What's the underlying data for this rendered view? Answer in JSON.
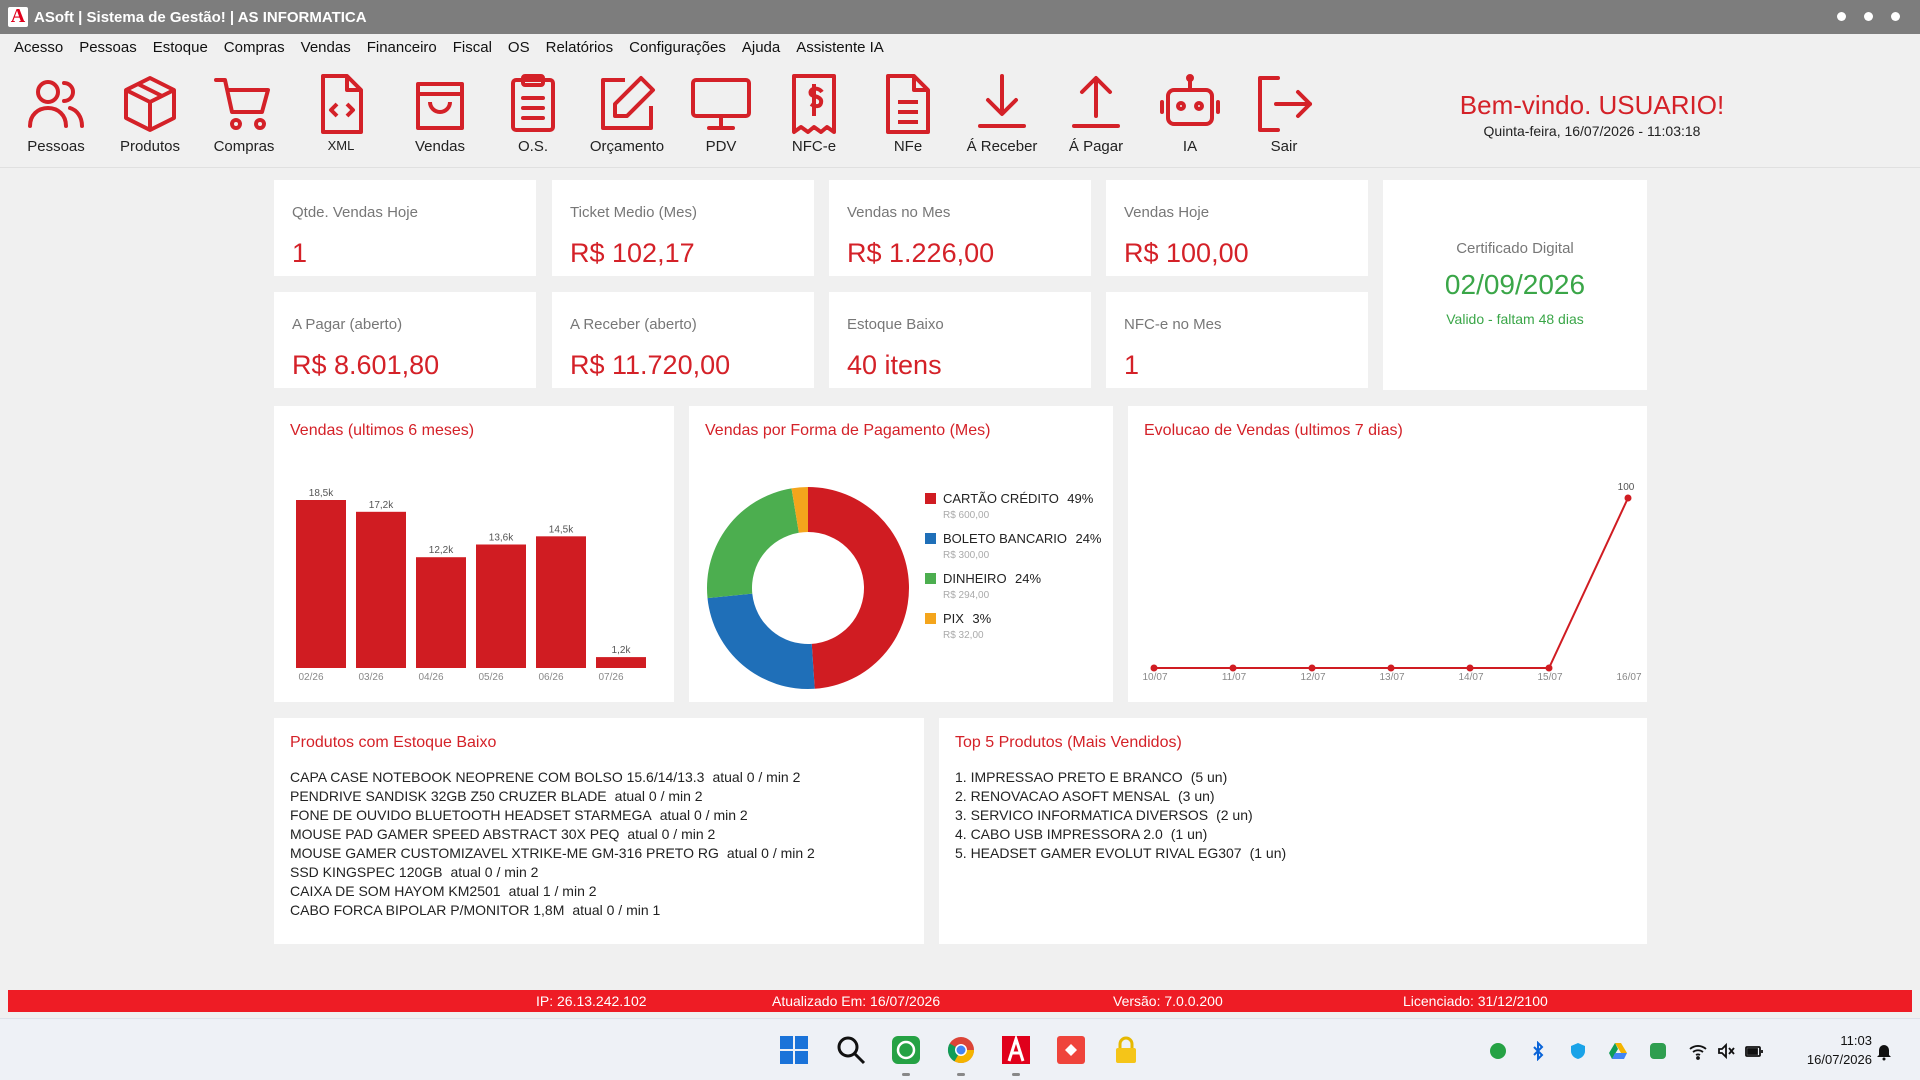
{
  "window": {
    "title": "ASoft | Sistema de Gestão! | AS INFORMATICA"
  },
  "menu": [
    "Acesso",
    "Pessoas",
    "Estoque",
    "Compras",
    "Vendas",
    "Financeiro",
    "Fiscal",
    "OS",
    "Relatórios",
    "Configurações",
    "Ajuda",
    "Assistente IA"
  ],
  "toolbar": [
    {
      "label": "Pessoas",
      "icon": "people-icon"
    },
    {
      "label": "Produtos",
      "icon": "box-icon"
    },
    {
      "label": "Compras",
      "icon": "cart-icon"
    },
    {
      "label": "XML",
      "icon": "xml-file-icon"
    },
    {
      "label": "Vendas",
      "icon": "shopping-bag-icon"
    },
    {
      "label": "O.S.",
      "icon": "clipboard-icon"
    },
    {
      "label": "Orçamento",
      "icon": "edit-icon"
    },
    {
      "label": "PDV",
      "icon": "monitor-icon"
    },
    {
      "label": "NFC-e",
      "icon": "receipt-icon"
    },
    {
      "label": "NFe",
      "icon": "document-icon"
    },
    {
      "label": "Á Receber",
      "icon": "download-icon"
    },
    {
      "label": "Á Pagar",
      "icon": "upload-icon"
    },
    {
      "label": "IA",
      "icon": "robot-icon"
    },
    {
      "label": "Sair",
      "icon": "logout-icon"
    }
  ],
  "welcome": {
    "title": "Bem-vindo. USUARIO!",
    "date": "Quinta-feira, 16/07/2026 - 11:03:18"
  },
  "stats": [
    {
      "label": "Qtde. Vendas Hoje",
      "value": "1"
    },
    {
      "label": "Ticket Medio (Mes)",
      "value": "R$ 102,17"
    },
    {
      "label": "Vendas no Mes",
      "value": "R$ 1.226,00"
    },
    {
      "label": "Vendas Hoje",
      "value": "R$ 100,00"
    },
    {
      "label": "A Pagar (aberto)",
      "value": "R$ 8.601,80"
    },
    {
      "label": "A Receber (aberto)",
      "value": "R$ 11.720,00"
    },
    {
      "label": "Estoque Baixo",
      "value": "40 itens"
    },
    {
      "label": "NFC-e no Mes",
      "value": "1"
    }
  ],
  "certificate": {
    "label": "Certificado Digital",
    "date": "02/09/2026",
    "status": "Valido - faltam 48 dias"
  },
  "panels": {
    "sales6": "Vendas (ultimos 6 meses)",
    "payment": "Vendas por Forma de Pagamento (Mes)",
    "evolution": "Evolucao de Vendas (ultimos 7 dias)",
    "lowstock": "Produtos com Estoque Baixo",
    "top5": "Top 5 Produtos (Mais Vendidos)"
  },
  "chart_data": [
    {
      "type": "bar",
      "title": "Vendas (ultimos 6 meses)",
      "categories": [
        "02/26",
        "03/26",
        "04/26",
        "05/26",
        "06/26",
        "07/26"
      ],
      "values": [
        18500,
        17200,
        12200,
        13600,
        14500,
        1200
      ],
      "labels": [
        "18,5k",
        "17,2k",
        "12,2k",
        "13,6k",
        "14,5k",
        "1,2k"
      ],
      "ylim": [
        0,
        18500
      ],
      "color": "#d01c22"
    },
    {
      "type": "pie",
      "title": "Vendas por Forma de Pagamento (Mes)",
      "donut": true,
      "slices": [
        {
          "name": "CARTÃO CRÉDITO",
          "percent": "49%",
          "amount": "R$ 600,00",
          "value": 600,
          "color": "#d01c22"
        },
        {
          "name": "BOLETO BANCARIO",
          "percent": "24%",
          "amount": "R$ 300,00",
          "value": 300,
          "color": "#1f6fb8"
        },
        {
          "name": "DINHEIRO",
          "percent": "24%",
          "amount": "R$ 294,00",
          "value": 294,
          "color": "#4cae4f"
        },
        {
          "name": "PIX",
          "percent": "3%",
          "amount": "R$ 32,00",
          "value": 32,
          "color": "#f4a51c"
        }
      ]
    },
    {
      "type": "line",
      "title": "Evolucao de Vendas (ultimos 7 dias)",
      "x": [
        "10/07",
        "11/07",
        "12/07",
        "13/07",
        "14/07",
        "15/07",
        "16/07"
      ],
      "values": [
        0,
        0,
        0,
        0,
        0,
        0,
        100
      ],
      "point_labels": [
        "",
        "",
        "",
        "",
        "",
        "",
        "100"
      ],
      "ylim": [
        0,
        100
      ],
      "color": "#d01c22"
    }
  ],
  "low_stock": [
    {
      "name": "CAPA CASE NOTEBOOK NEOPRENE COM BOLSO 15.6/14/13.3",
      "meta": "atual 0 / min 2"
    },
    {
      "name": "PENDRIVE SANDISK  32GB Z50 CRUZER BLADE",
      "meta": "atual 0 / min 2"
    },
    {
      "name": "FONE DE OUVIDO BLUETOOTH HEADSET STARMEGA",
      "meta": "atual 0 / min 2"
    },
    {
      "name": "MOUSE PAD GAMER SPEED ABSTRACT 30X PEQ",
      "meta": "atual 0 / min 2"
    },
    {
      "name": "MOUSE GAMER CUSTOMIZAVEL XTRIKE-ME GM-316 PRETO RG",
      "meta": "atual 0 / min 2"
    },
    {
      "name": "SSD KINGSPEC 120GB",
      "meta": "atual 0 / min 2"
    },
    {
      "name": "CAIXA DE SOM HAYOM KM2501",
      "meta": "atual 1 / min 2"
    },
    {
      "name": "CABO FORCA BIPOLAR P/MONITOR 1,8M",
      "meta": "atual 0 / min 1"
    }
  ],
  "top5": [
    {
      "name": "1.  IMPRESSAO PRETO E BRANCO",
      "meta": "(5 un)"
    },
    {
      "name": "2.  RENOVACAO ASOFT MENSAL",
      "meta": "(3 un)"
    },
    {
      "name": "3.  SERVICO INFORMATICA DIVERSOS",
      "meta": "(2 un)"
    },
    {
      "name": "4.  CABO USB IMPRESSORA 2.0",
      "meta": "(1 un)"
    },
    {
      "name": "5.  HEADSET GAMER  EVOLUT RIVAL EG307",
      "meta": "(1 un)"
    }
  ],
  "status": {
    "ip": "IP: 26.13.242.102",
    "updated": "Atualizado Em: 16/07/2026",
    "version": "Versão: 7.0.0.200",
    "license": "Licenciado: 31/12/2100"
  },
  "taskbar": {
    "time": "11:03",
    "date": "16/07/2026",
    "apps": [
      "windows-start-icon",
      "search-icon",
      "whatsapp-icon",
      "chrome-icon",
      "asoft-icon",
      "anydesk-icon",
      "lock-icon"
    ]
  }
}
